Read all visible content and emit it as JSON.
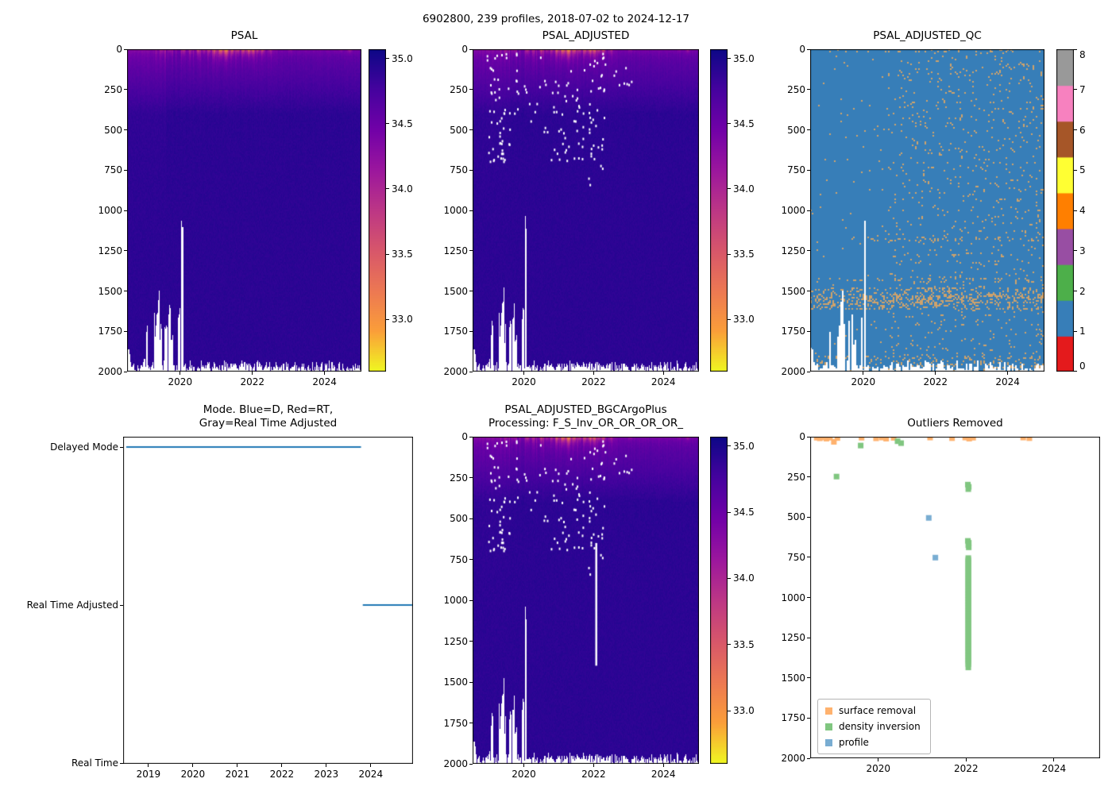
{
  "figure": {
    "title": "6902800, 239 profiles, 2018-07-02 to 2024-12-17"
  },
  "salinity_field": {
    "profiles": 239,
    "time_range": [
      2018.53,
      2024.96
    ],
    "depth_range": [
      0,
      2000
    ],
    "background": {
      "deep_salinity": 34.9,
      "surface_salinity": 34.33,
      "pycnocline_depth": 400
    },
    "bottom_edge_depth": [
      1945,
      2005
    ],
    "seed": 11,
    "surface_fresh_events": [
      {
        "t": 2019.5,
        "s": 33.9,
        "scale": 16
      },
      {
        "t": 2019.72,
        "s": 34.0,
        "scale": 14
      },
      {
        "t": 2020.1,
        "s": 33.6,
        "scale": 18
      },
      {
        "t": 2020.28,
        "s": 33.8,
        "scale": 14
      },
      {
        "t": 2020.5,
        "s": 33.3,
        "scale": 18
      },
      {
        "t": 2020.66,
        "s": 33.8,
        "scale": 14
      },
      {
        "t": 2020.8,
        "s": 33.5,
        "scale": 16
      },
      {
        "t": 2020.95,
        "s": 33.1,
        "scale": 22
      },
      {
        "t": 2021.12,
        "s": 32.8,
        "scale": 26,
        "w": 0.06
      },
      {
        "t": 2021.28,
        "s": 32.7,
        "scale": 28,
        "w": 0.07
      },
      {
        "t": 2021.45,
        "s": 33.0,
        "scale": 20
      },
      {
        "t": 2021.6,
        "s": 33.4,
        "scale": 16
      },
      {
        "t": 2021.75,
        "s": 33.1,
        "scale": 20
      },
      {
        "t": 2021.9,
        "s": 32.9,
        "scale": 22,
        "w": 0.06
      },
      {
        "t": 2022.02,
        "s": 33.0,
        "scale": 20
      },
      {
        "t": 2022.15,
        "s": 33.4,
        "scale": 16
      },
      {
        "t": 2022.28,
        "s": 33.3,
        "scale": 16
      },
      {
        "t": 2022.5,
        "s": 33.7,
        "scale": 14
      },
      {
        "t": 2023.05,
        "s": 34.0,
        "scale": 10
      },
      {
        "t": 2024.45,
        "s": 34.1,
        "scale": 10
      },
      {
        "t": 2024.7,
        "s": 33.8,
        "scale": 12
      }
    ],
    "deep_data_gaps": [
      {
        "t": [
          2018.52,
          2018.62
        ],
        "max_depth": [
          1800,
          1920
        ]
      },
      {
        "t": [
          2018.97,
          2019.03
        ],
        "max_depth": [
          1840,
          1950
        ]
      },
      {
        "t": [
          2019.05,
          2019.12
        ],
        "max_depth": [
          1620,
          1780
        ]
      },
      {
        "t": [
          2019.28,
          2019.48
        ],
        "max_depth": [
          1480,
          1950
        ]
      },
      {
        "t": [
          2019.57,
          2019.64
        ],
        "max_depth": [
          1650,
          1820
        ]
      },
      {
        "t": [
          2019.68,
          2019.82
        ],
        "max_depth": [
          1550,
          1880
        ]
      },
      {
        "t": [
          2019.94,
          2020.01
        ],
        "max_depth": [
          1600,
          1720
        ]
      },
      {
        "t": [
          2020.04,
          2020.07
        ],
        "max_depth": [
          1040,
          1100
        ]
      }
    ]
  },
  "chart_data": [
    {
      "id": "psal",
      "type": "heatmap",
      "title": "PSAL",
      "xlim": [
        2018.53,
        2025.02
      ],
      "xticks": [
        2020,
        2022,
        2024
      ],
      "ylim": [
        2000,
        0
      ],
      "yticks": [
        0,
        250,
        500,
        750,
        1000,
        1250,
        1500,
        1750,
        2000
      ],
      "colorbar": {
        "cmap": "plasma_r",
        "vmin": 32.6,
        "vmax": 35.07,
        "ticks": [
          35.0,
          34.5,
          34.0,
          33.5,
          33.0
        ]
      },
      "seed": 11
    },
    {
      "id": "psal_adjusted",
      "type": "heatmap",
      "title": "PSAL_ADJUSTED",
      "xlim": [
        2018.53,
        2025.02
      ],
      "xticks": [
        2020,
        2022,
        2024
      ],
      "ylim": [
        2000,
        0
      ],
      "yticks": [
        0,
        250,
        500,
        750,
        1000,
        1250,
        1500,
        1750,
        2000
      ],
      "colorbar": {
        "cmap": "plasma_r",
        "vmin": 32.6,
        "vmax": 35.07,
        "ticks": [
          35.0,
          34.5,
          34.0,
          33.5,
          33.0
        ]
      },
      "removed_points": {
        "seed": 7,
        "clusters": [
          {
            "n": 55,
            "t": [
              2018.95,
              2019.62
            ],
            "d": [
              25,
              700
            ]
          },
          {
            "n": 18,
            "t": [
              2019.65,
              2020.5
            ],
            "d": [
              25,
              450
            ]
          },
          {
            "n": 50,
            "t": [
              2020.5,
              2021.8
            ],
            "d": [
              25,
              700
            ]
          },
          {
            "n": 40,
            "t": [
              2021.85,
              2022.35
            ],
            "d": [
              25,
              850
            ]
          },
          {
            "n": 8,
            "t": [
              2022.4,
              2023.2
            ],
            "d": [
              25,
              300
            ]
          }
        ]
      },
      "seed": 12
    },
    {
      "id": "psal_adjusted_qc",
      "type": "heatmap",
      "title": "PSAL_ADJUSTED_QC",
      "xlim": [
        2018.53,
        2025.02
      ],
      "xticks": [
        2020,
        2022,
        2024
      ],
      "ylim": [
        2000,
        0
      ],
      "yticks": [
        0,
        250,
        500,
        750,
        1000,
        1250,
        1500,
        1750,
        2000
      ],
      "dominant_flag": 1,
      "background_color": "#377eb8",
      "speckle_color": "#cfa26b",
      "base_density": [
        {
          "t": [
            2018.5,
            2020.7
          ],
          "p": 0.01
        },
        {
          "t": [
            2020.7,
            2025.1
          ],
          "p": 0.045
        }
      ],
      "speckle_bands": [
        {
          "d": [
            1480,
            1620
          ],
          "p": 0.2
        },
        {
          "d": [
            1530,
            1580
          ],
          "p": 0.18
        },
        {
          "d": [
            1900,
            2010
          ],
          "p": 0.1
        },
        {
          "d": [
            0,
            22
          ],
          "p": 0.12,
          "t": [
            2019.2,
            2025.1
          ]
        },
        {
          "d": [
            1160,
            1190
          ],
          "p": 0.08,
          "t": [
            2019.6,
            2025.1
          ]
        },
        {
          "d": [
            1420,
            1450
          ],
          "p": 0.1
        }
      ],
      "colorbar": {
        "type": "discrete",
        "ticks": [
          0,
          1,
          2,
          3,
          4,
          5,
          6,
          7,
          8
        ],
        "colors": [
          "#e41a1c",
          "#377eb8",
          "#4daf4a",
          "#984ea3",
          "#ff7f00",
          "#ffff33",
          "#a65628",
          "#f781bf",
          "#999999"
        ]
      },
      "seed": 23
    },
    {
      "id": "mode",
      "type": "line",
      "title": "Mode. Blue=D, Red=RT,\nGray=Real Time Adjusted",
      "xlim": [
        2018.43,
        2024.95
      ],
      "xticks": [
        2019,
        2020,
        2021,
        2022,
        2023,
        2024
      ],
      "categories": [
        "Delayed Mode",
        "Real Time Adjusted",
        "Real Time"
      ],
      "line_color": "#1f77b4",
      "line_width": 2,
      "segments": [
        {
          "category": "Delayed Mode",
          "start": 2018.5,
          "end": 2023.78
        },
        {
          "category": "Real Time Adjusted",
          "start": 2023.82,
          "end": 2024.93
        }
      ]
    },
    {
      "id": "psal_adjusted_bgc",
      "type": "heatmap",
      "title": "PSAL_ADJUSTED_BGCArgoPlus\nProcessing: F_S_Inv_OR_OR_OR_OR_",
      "xlim": [
        2018.53,
        2025.02
      ],
      "xticks": [
        2020,
        2022,
        2024
      ],
      "ylim": [
        2000,
        0
      ],
      "yticks": [
        0,
        250,
        500,
        750,
        1000,
        1250,
        1500,
        1750,
        2000
      ],
      "colorbar": {
        "cmap": "plasma_r",
        "vmin": 32.6,
        "vmax": 35.07,
        "ticks": [
          35.0,
          34.5,
          34.0,
          33.5,
          33.0
        ]
      },
      "removed_points": {
        "seed": 7,
        "clusters": [
          {
            "n": 55,
            "t": [
              2018.95,
              2019.62
            ],
            "d": [
              25,
              700
            ]
          },
          {
            "n": 18,
            "t": [
              2019.65,
              2020.5
            ],
            "d": [
              25,
              450
            ]
          },
          {
            "n": 50,
            "t": [
              2020.5,
              2021.8
            ],
            "d": [
              25,
              700
            ]
          },
          {
            "n": 40,
            "t": [
              2021.85,
              2022.35
            ],
            "d": [
              25,
              850
            ]
          },
          {
            "n": 8,
            "t": [
              2022.4,
              2023.2
            ],
            "d": [
              25,
              300
            ]
          }
        ]
      },
      "removed_run": {
        "t": 2022.07,
        "d": [
          650,
          1400
        ]
      },
      "seed": 12
    },
    {
      "id": "outliers",
      "type": "scatter",
      "title": "Outliers Removed",
      "xlim": [
        2018.45,
        2025.05
      ],
      "xticks": [
        2020,
        2022,
        2024
      ],
      "ylim": [
        2000,
        0
      ],
      "yticks": [
        0,
        250,
        500,
        750,
        1000,
        1250,
        1500,
        1750,
        2000
      ],
      "marker_size": 7,
      "series": [
        {
          "name": "surface removal",
          "color": "#ffb26e",
          "points": [
            [
              2018.6,
              6
            ],
            [
              2018.67,
              10
            ],
            [
              2018.74,
              4
            ],
            [
              2018.82,
              12
            ],
            [
              2018.9,
              6
            ],
            [
              2018.99,
              32
            ],
            [
              2019.07,
              8
            ],
            [
              2019.62,
              6
            ],
            [
              2019.95,
              10
            ],
            [
              2020.08,
              5
            ],
            [
              2020.18,
              12
            ],
            [
              2020.35,
              7
            ],
            [
              2021.18,
              5
            ],
            [
              2021.68,
              9
            ],
            [
              2021.98,
              5
            ],
            [
              2022.07,
              12
            ],
            [
              2022.16,
              6
            ],
            [
              2023.3,
              5
            ],
            [
              2023.44,
              9
            ]
          ]
        },
        {
          "name": "density inversion",
          "color": "#80c680",
          "points": [
            [
              2019.05,
              248
            ],
            [
              2019.6,
              55
            ],
            [
              2020.44,
              28
            ],
            [
              2020.52,
              40
            ],
            [
              2022.04,
              298
            ],
            [
              2022.06,
              312
            ],
            [
              2022.05,
              326
            ],
            [
              2022.04,
              648
            ],
            [
              2022.06,
              660
            ],
            [
              2022.05,
              674
            ],
            [
              2022.06,
              688
            ],
            [
              2022.05,
              1435
            ]
          ],
          "runs": [
            {
              "t": 2022.05,
              "d": [
                755,
                1420
              ],
              "step": 10
            }
          ]
        },
        {
          "name": "profile",
          "color": "#79add2",
          "points": [
            [
              2021.15,
              505
            ],
            [
              2021.3,
              752
            ]
          ]
        }
      ],
      "legend": {
        "position": "lower left"
      }
    }
  ]
}
